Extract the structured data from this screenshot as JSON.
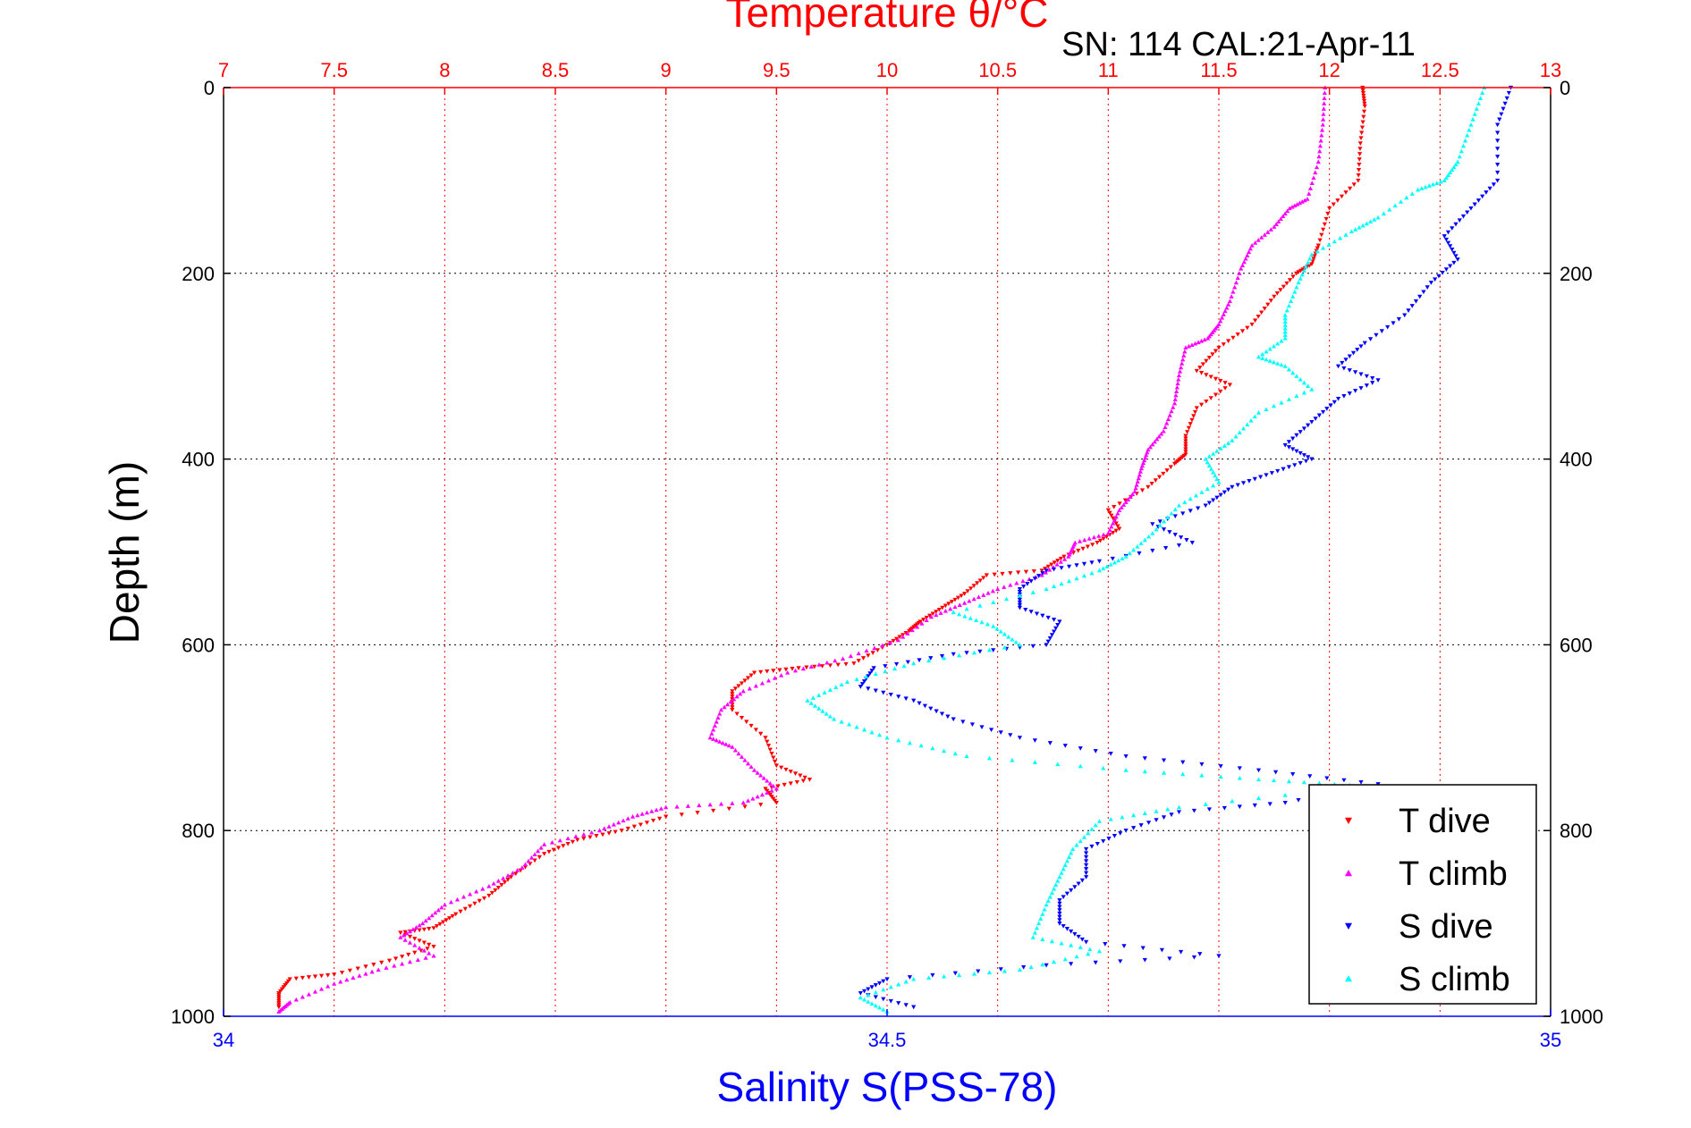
{
  "chart_data": {
    "type": "scatter",
    "title": "Temperature θ/°C",
    "subtitle": "SN: 114  CAL:21-Apr-11",
    "ylabel": "Depth (m)",
    "xlabel_top": "Temperature θ/°C",
    "xlabel_bottom": "Salinity S(PSS-78)",
    "x_top_range": [
      7,
      13
    ],
    "x_top_ticks": [
      "7",
      "7.5",
      "8",
      "8.5",
      "9",
      "9.5",
      "10",
      "10.5",
      "11",
      "11.5",
      "12",
      "12.5",
      "13"
    ],
    "x_bottom_range": [
      34,
      35
    ],
    "x_bottom_ticks": [
      "34",
      "34.5",
      "35"
    ],
    "y_range": [
      0,
      1000
    ],
    "y_reversed": true,
    "y_ticks": [
      "0",
      "200",
      "400",
      "600",
      "800",
      "1000"
    ],
    "grid": true,
    "legend_position": "bottom-right",
    "series": [
      {
        "name": "T dive",
        "axis": "top",
        "color": "#ff0000",
        "marker": "triangle-down",
        "points": [
          [
            12.15,
            0
          ],
          [
            12.16,
            20
          ],
          [
            12.14,
            60
          ],
          [
            12.13,
            100
          ],
          [
            12.0,
            130
          ],
          [
            11.95,
            170
          ],
          [
            11.92,
            190
          ],
          [
            11.85,
            200
          ],
          [
            11.75,
            225
          ],
          [
            11.65,
            255
          ],
          [
            11.5,
            280
          ],
          [
            11.4,
            305
          ],
          [
            11.55,
            320
          ],
          [
            11.4,
            345
          ],
          [
            11.35,
            375
          ],
          [
            11.35,
            395
          ],
          [
            11.3,
            405
          ],
          [
            11.18,
            430
          ],
          [
            11.0,
            455
          ],
          [
            11.05,
            475
          ],
          [
            10.95,
            490
          ],
          [
            10.8,
            505
          ],
          [
            10.7,
            520
          ],
          [
            10.45,
            525
          ],
          [
            10.35,
            545
          ],
          [
            10.25,
            560
          ],
          [
            10.15,
            575
          ],
          [
            10.1,
            585
          ],
          [
            10.0,
            600
          ],
          [
            9.85,
            620
          ],
          [
            9.6,
            625
          ],
          [
            9.4,
            630
          ],
          [
            9.3,
            650
          ],
          [
            9.3,
            670
          ],
          [
            9.45,
            700
          ],
          [
            9.5,
            730
          ],
          [
            9.65,
            745
          ],
          [
            9.45,
            755
          ],
          [
            9.5,
            770
          ],
          [
            9.0,
            785
          ],
          [
            8.8,
            800
          ],
          [
            8.6,
            810
          ],
          [
            8.45,
            825
          ],
          [
            8.3,
            850
          ],
          [
            8.2,
            870
          ],
          [
            8.05,
            890
          ],
          [
            7.95,
            905
          ],
          [
            7.8,
            910
          ],
          [
            7.95,
            925
          ],
          [
            7.75,
            940
          ],
          [
            7.5,
            955
          ],
          [
            7.3,
            960
          ],
          [
            7.25,
            975
          ],
          [
            7.25,
            990
          ]
        ]
      },
      {
        "name": "T climb",
        "axis": "top",
        "color": "#ff00ff",
        "marker": "triangle-up",
        "points": [
          [
            11.98,
            0
          ],
          [
            11.97,
            40
          ],
          [
            11.95,
            80
          ],
          [
            11.9,
            120
          ],
          [
            11.82,
            130
          ],
          [
            11.75,
            150
          ],
          [
            11.65,
            170
          ],
          [
            11.6,
            195
          ],
          [
            11.55,
            230
          ],
          [
            11.5,
            255
          ],
          [
            11.45,
            270
          ],
          [
            11.35,
            280
          ],
          [
            11.32,
            310
          ],
          [
            11.3,
            340
          ],
          [
            11.25,
            370
          ],
          [
            11.18,
            390
          ],
          [
            11.15,
            410
          ],
          [
            11.12,
            435
          ],
          [
            11.05,
            455
          ],
          [
            11.0,
            480
          ],
          [
            10.85,
            490
          ],
          [
            10.82,
            505
          ],
          [
            10.7,
            525
          ],
          [
            10.5,
            540
          ],
          [
            10.35,
            555
          ],
          [
            10.2,
            570
          ],
          [
            10.05,
            595
          ],
          [
            9.8,
            615
          ],
          [
            9.55,
            630
          ],
          [
            9.35,
            650
          ],
          [
            9.25,
            670
          ],
          [
            9.2,
            700
          ],
          [
            9.3,
            710
          ],
          [
            9.4,
            735
          ],
          [
            9.5,
            755
          ],
          [
            9.35,
            770
          ],
          [
            9.0,
            775
          ],
          [
            8.85,
            785
          ],
          [
            8.7,
            800
          ],
          [
            8.45,
            815
          ],
          [
            8.35,
            840
          ],
          [
            8.2,
            860
          ],
          [
            8.0,
            880
          ],
          [
            7.9,
            900
          ],
          [
            7.8,
            915
          ],
          [
            7.95,
            935
          ],
          [
            7.7,
            950
          ],
          [
            7.5,
            965
          ],
          [
            7.3,
            985
          ],
          [
            7.25,
            995
          ]
        ]
      },
      {
        "name": "S dive",
        "axis": "bottom",
        "color": "#0000ff",
        "marker": "triangle-down",
        "points": [
          [
            34.97,
            0
          ],
          [
            34.96,
            40
          ],
          [
            34.96,
            100
          ],
          [
            34.94,
            130
          ],
          [
            34.92,
            160
          ],
          [
            34.93,
            185
          ],
          [
            34.91,
            210
          ],
          [
            34.89,
            245
          ],
          [
            34.86,
            275
          ],
          [
            34.84,
            300
          ],
          [
            34.87,
            315
          ],
          [
            34.84,
            335
          ],
          [
            34.82,
            360
          ],
          [
            34.8,
            385
          ],
          [
            34.82,
            400
          ],
          [
            34.79,
            415
          ],
          [
            34.76,
            430
          ],
          [
            34.74,
            450
          ],
          [
            34.7,
            470
          ],
          [
            34.73,
            490
          ],
          [
            34.66,
            510
          ],
          [
            34.62,
            520
          ],
          [
            34.6,
            540
          ],
          [
            34.6,
            560
          ],
          [
            34.63,
            575
          ],
          [
            34.62,
            600
          ],
          [
            34.55,
            610
          ],
          [
            34.49,
            625
          ],
          [
            34.48,
            645
          ],
          [
            34.52,
            660
          ],
          [
            34.55,
            680
          ],
          [
            34.6,
            700
          ],
          [
            34.68,
            720
          ],
          [
            34.78,
            735
          ],
          [
            34.87,
            750
          ],
          [
            34.8,
            770
          ],
          [
            34.72,
            780
          ],
          [
            34.68,
            800
          ],
          [
            34.65,
            820
          ],
          [
            34.65,
            850
          ],
          [
            34.63,
            875
          ],
          [
            34.63,
            900
          ],
          [
            34.65,
            920
          ],
          [
            34.75,
            935
          ],
          [
            34.62,
            945
          ],
          [
            34.5,
            960
          ],
          [
            34.48,
            975
          ],
          [
            34.52,
            990
          ]
        ]
      },
      {
        "name": "S climb",
        "axis": "bottom",
        "color": "#00ffff",
        "marker": "triangle-up",
        "points": [
          [
            34.95,
            0
          ],
          [
            34.94,
            40
          ],
          [
            34.93,
            80
          ],
          [
            34.92,
            100
          ],
          [
            34.9,
            110
          ],
          [
            34.87,
            140
          ],
          [
            34.85,
            155
          ],
          [
            34.82,
            180
          ],
          [
            34.81,
            210
          ],
          [
            34.8,
            245
          ],
          [
            34.8,
            270
          ],
          [
            34.78,
            290
          ],
          [
            34.8,
            300
          ],
          [
            34.82,
            325
          ],
          [
            34.78,
            350
          ],
          [
            34.76,
            380
          ],
          [
            34.74,
            400
          ],
          [
            34.75,
            425
          ],
          [
            34.72,
            450
          ],
          [
            34.7,
            480
          ],
          [
            34.68,
            505
          ],
          [
            34.66,
            520
          ],
          [
            34.62,
            540
          ],
          [
            34.55,
            565
          ],
          [
            34.58,
            580
          ],
          [
            34.6,
            600
          ],
          [
            34.52,
            620
          ],
          [
            34.47,
            640
          ],
          [
            34.44,
            660
          ],
          [
            34.46,
            680
          ],
          [
            34.5,
            700
          ],
          [
            34.56,
            720
          ],
          [
            34.68,
            735
          ],
          [
            34.78,
            745
          ],
          [
            34.86,
            752
          ],
          [
            34.72,
            775
          ],
          [
            34.66,
            790
          ],
          [
            34.64,
            820
          ],
          [
            34.63,
            850
          ],
          [
            34.62,
            880
          ],
          [
            34.61,
            915
          ],
          [
            34.66,
            930
          ],
          [
            34.6,
            950
          ],
          [
            34.52,
            960
          ],
          [
            34.48,
            980
          ],
          [
            34.5,
            995
          ]
        ]
      }
    ]
  }
}
